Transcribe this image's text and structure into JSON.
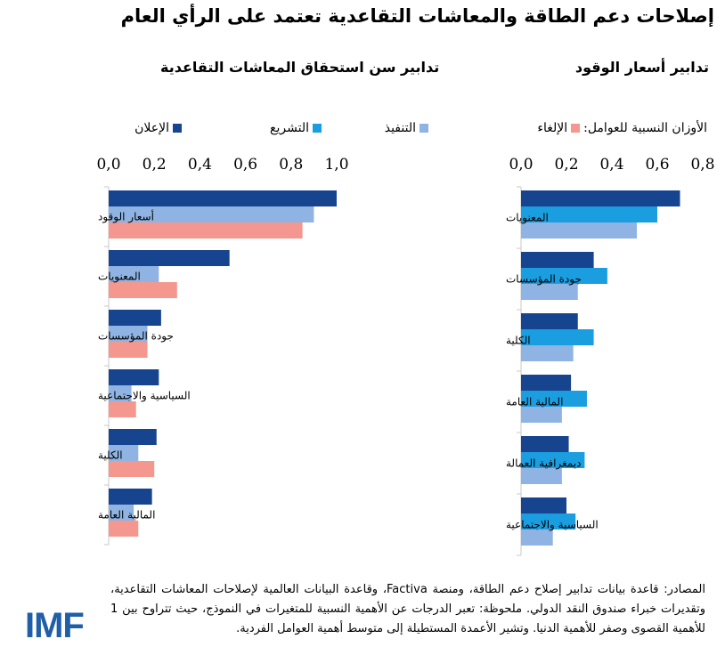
{
  "title": "إصلاحات دعم الطاقة والمعاشات التقاعدية تعتمد على الرأي العام",
  "subtitles": {
    "right": "تدابير أسعار الوقود",
    "left": "تدابير سن استحقاق المعاشات التقاعدية"
  },
  "legend": {
    "prefix": "الأوزان النسبية للعوامل:",
    "items": [
      {
        "label": "الإلغاء",
        "color": "#f4978e"
      },
      {
        "label": "التنفيذ",
        "color": "#8fb4e3"
      },
      {
        "label": "التشريع",
        "color": "#1a9ee0"
      },
      {
        "label": "الإعلان",
        "color": "#17448e"
      }
    ]
  },
  "chart_data": [
    {
      "type": "bar",
      "orientation": "horizontal",
      "title": "تدابير أسعار الوقود",
      "categories": [
        "المعنويات",
        "جودة المؤسسات",
        "الكلية",
        "المالية العامة",
        "ديمغرافية العمالة",
        "السياسية والاجتماعية"
      ],
      "series": [
        {
          "name": "الإعلان",
          "color": "#17448e",
          "values": [
            0.7,
            0.32,
            0.25,
            0.22,
            0.21,
            0.2
          ]
        },
        {
          "name": "التشريع",
          "color": "#1a9ee0",
          "values": [
            0.6,
            0.38,
            0.32,
            0.29,
            0.28,
            0.24
          ]
        },
        {
          "name": "التنفيذ",
          "color": "#8fb4e3",
          "values": [
            0.51,
            0.25,
            0.23,
            0.18,
            0.18,
            0.14
          ]
        }
      ],
      "xlim": [
        0,
        0.8
      ],
      "ticks": [
        "0,0",
        "0,2",
        "0,4",
        "0,6",
        "0,8"
      ]
    },
    {
      "type": "bar",
      "orientation": "horizontal",
      "title": "تدابير سن استحقاق المعاشات التقاعدية",
      "categories": [
        "أسعار الوقود",
        "المعنويات",
        "جودة المؤسسات",
        "السياسية والاجتماعية",
        "الكلية",
        "المالية العامة"
      ],
      "series": [
        {
          "name": "الإعلان",
          "color": "#17448e",
          "values": [
            1.0,
            0.53,
            0.23,
            0.22,
            0.21,
            0.19
          ]
        },
        {
          "name": "التنفيذ",
          "color": "#8fb4e3",
          "values": [
            0.9,
            0.22,
            0.17,
            0.1,
            0.13,
            0.11
          ]
        },
        {
          "name": "الإلغاء",
          "color": "#f4978e",
          "values": [
            0.85,
            0.3,
            0.17,
            0.12,
            0.2,
            0.13
          ]
        }
      ],
      "xlim": [
        0,
        1.0
      ],
      "ticks": [
        "0,0",
        "0,2",
        "0,4",
        "0,6",
        "0,8",
        "1,0"
      ]
    }
  ],
  "footer": "المصادر: قاعدة بيانات تدابير إصلاح دعم الطاقة، ومنصة Factiva، وقاعدة البيانات العالمية لإصلاحات المعاشات التقاعدية، وتقديرات خبراء صندوق النقد الدولي. ملحوظة: تعبر الدرجات عن الأهمية النسبية للمتغيرات في النموذج، حيث تتراوح بين 1 للأهمية القصوى وصفر للأهمية الدنيا. وتشير الأعمدة المستطيلة إلى متوسط أهمية العوامل الفردية.",
  "logo": "IMF"
}
